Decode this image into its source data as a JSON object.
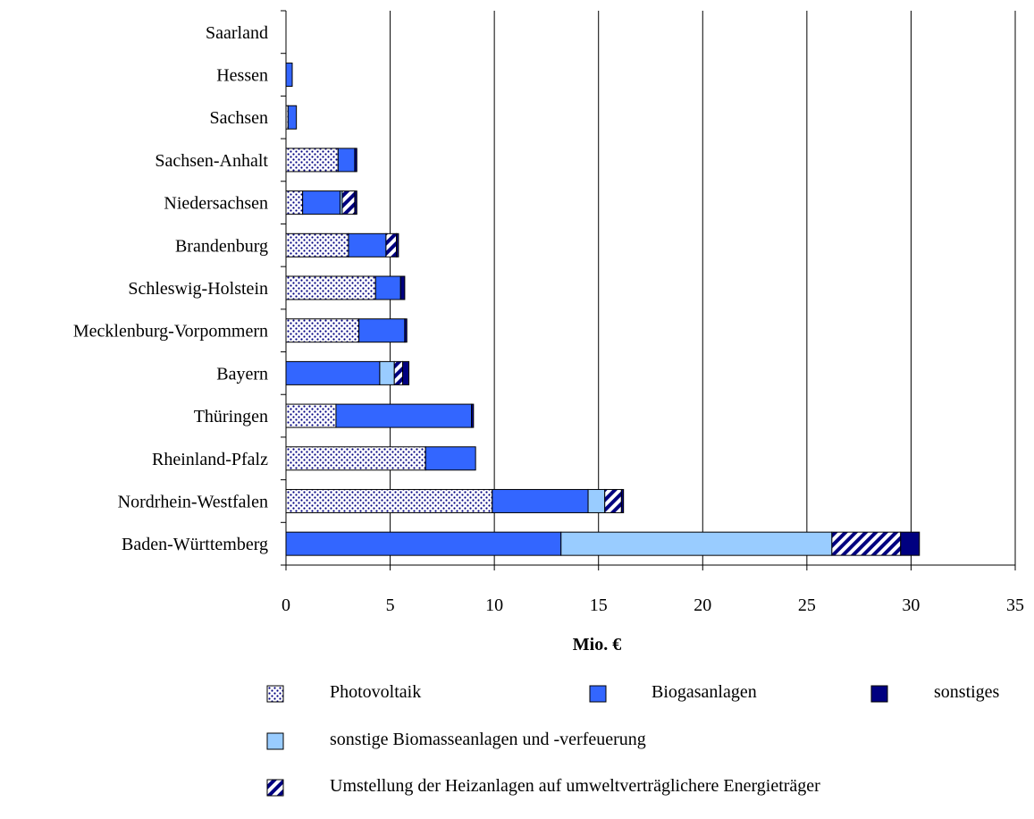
{
  "chart_data": {
    "type": "bar",
    "orientation": "horizontal",
    "stacked": true,
    "categories": [
      "Saarland",
      "Hessen",
      "Sachsen",
      "Sachsen-Anhalt",
      "Niedersachsen",
      "Brandenburg",
      "Schleswig-Holstein",
      "Mecklenburg-Vorpommern",
      "Bayern",
      "Thüringen",
      "Rheinland-Pfalz",
      "Nordrhein-Westfalen",
      "Baden-Württemberg"
    ],
    "series": [
      {
        "name": "Photovoltaik",
        "key": "pv",
        "color": "#ffffff",
        "pattern": "dots",
        "values": [
          0,
          0,
          0.1,
          2.5,
          0.8,
          3.0,
          4.3,
          3.5,
          0,
          2.4,
          6.7,
          9.9,
          0
        ]
      },
      {
        "name": "Biogasanlagen",
        "key": "biogas",
        "color": "#3366ff",
        "pattern": "solid",
        "values": [
          0,
          0.3,
          0.4,
          0.8,
          1.8,
          1.8,
          1.2,
          2.2,
          4.5,
          6.5,
          2.4,
          4.6,
          13.2
        ]
      },
      {
        "name": "sonstige Biomasseanlagen und -verfeuerung",
        "key": "biomass",
        "color": "#99ccff",
        "pattern": "solid",
        "values": [
          0,
          0,
          0,
          0,
          0.1,
          0,
          0,
          0,
          0.7,
          0,
          0,
          0.8,
          13.0
        ]
      },
      {
        "name": "Umstellung der Heizanlagen auf umweltverträglichere Energieträger",
        "key": "heating",
        "color": "#000080",
        "pattern": "stripes",
        "values": [
          0,
          0,
          0,
          0,
          0.6,
          0.5,
          0,
          0,
          0.4,
          0,
          0,
          0.8,
          3.3
        ]
      },
      {
        "name": "sonstiges",
        "key": "other",
        "color": "#000080",
        "pattern": "solid",
        "values": [
          0,
          0,
          0,
          0.1,
          0.1,
          0.1,
          0.2,
          0.1,
          0.3,
          0.1,
          0,
          0.1,
          0.9
        ]
      }
    ],
    "xlabel": "Mio. €",
    "ylabel": "",
    "xlim": [
      0,
      35
    ],
    "xticks": [
      0,
      5,
      10,
      15,
      20,
      25,
      30,
      35
    ],
    "grid": "vertical",
    "legend_position": "bottom",
    "legend_order": [
      "pv",
      "biogas",
      "other",
      "biomass",
      "heating"
    ]
  }
}
